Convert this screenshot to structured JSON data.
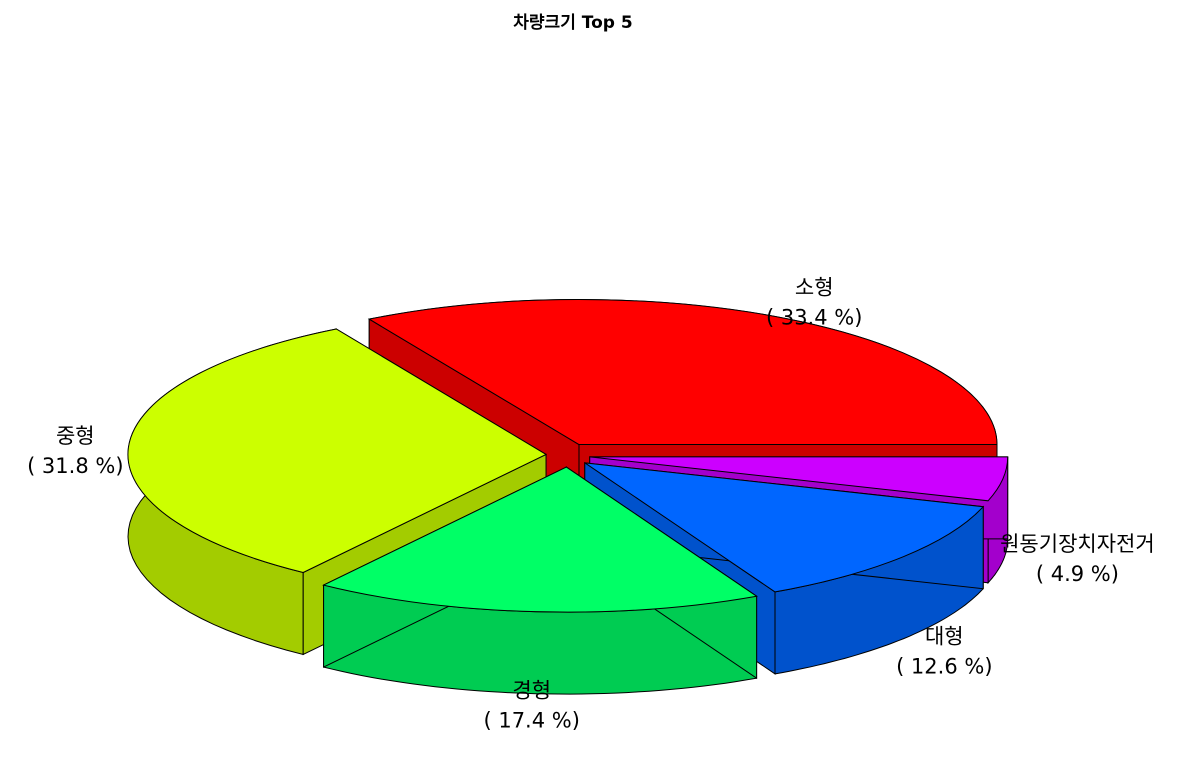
{
  "chart_data": {
    "type": "pie",
    "title": "차량크기 Top 5",
    "slices": [
      {
        "name": "소형",
        "value": 33.4,
        "pct_label": "( 33.4 %)",
        "color": "#ff0000",
        "side_color": "#cc0000"
      },
      {
        "name": "원동기장치자전거",
        "value": 4.9,
        "pct_label": "( 4.9 %)",
        "color": "#cc00ff",
        "side_color": "#a300cc"
      },
      {
        "name": "대형",
        "value": 12.6,
        "pct_label": "( 12.6 %)",
        "color": "#0066ff",
        "side_color": "#0052cc"
      },
      {
        "name": "경형",
        "value": 17.4,
        "pct_label": "( 17.4 %)",
        "color": "#00ff66",
        "side_color": "#00cc52"
      },
      {
        "name": "중형",
        "value": 31.8,
        "pct_label": "( 31.8 %)",
        "color": "#ccff00",
        "side_color": "#a3cc00"
      }
    ],
    "style": "3d-exploded",
    "legend": "none"
  }
}
